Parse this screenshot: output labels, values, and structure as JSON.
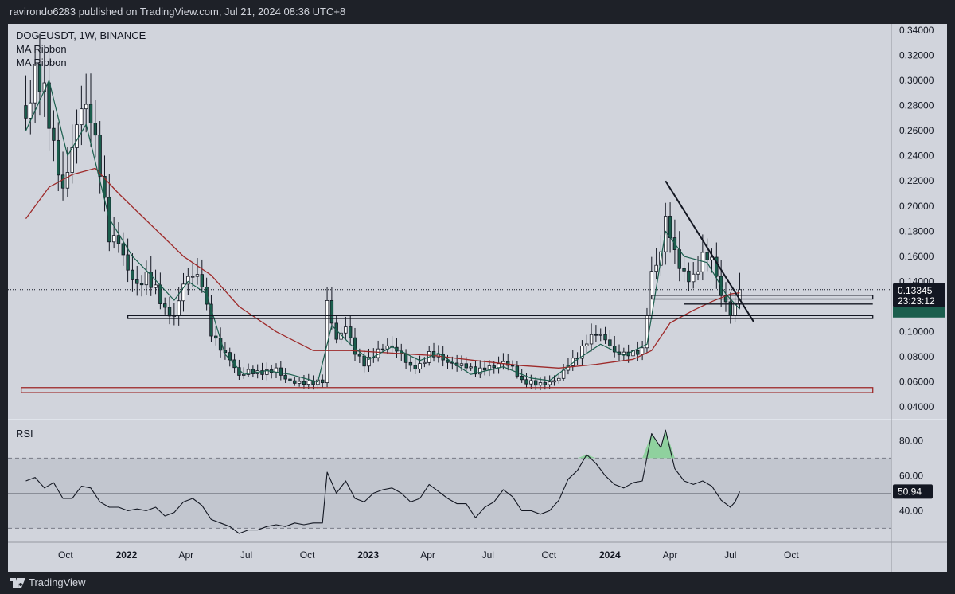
{
  "header": {
    "published": "ravirondo6283 published on TradingView.com, Jul 21, 2024 08:36 UTC+8"
  },
  "legend": {
    "symbol": "DOGEUSDT, 1W, BINANCE",
    "indicator_1": "MA Ribbon",
    "indicator_2": "MA Ribbon"
  },
  "footer": {
    "brand": "TradingView"
  },
  "colors": {
    "up": "#ffffff",
    "down": "#1b5e4d",
    "ma_fast": "#1b5e4d",
    "ma_slow": "#9e2a2a",
    "background": "#d1d4dc",
    "frame": "#1e2128"
  },
  "chart_data": [
    {
      "type": "candlestick",
      "symbol": "DOGEUSDT",
      "interval": "1W",
      "exchange": "BINANCE",
      "ylim": [
        0.03,
        0.345
      ],
      "y_ticks": [
        "0.34000",
        "0.32000",
        "0.30000",
        "0.28000",
        "0.26000",
        "0.24000",
        "0.22000",
        "0.20000",
        "0.18000",
        "0.16000",
        "0.14000",
        "0.12000",
        "0.10000",
        "0.08000",
        "0.06000",
        "0.04000"
      ],
      "x_ticks": [
        {
          "label": "Oct",
          "date": "2021-10-01",
          "bold": false
        },
        {
          "label": "2022",
          "date": "2022-01-01",
          "bold": true
        },
        {
          "label": "Apr",
          "date": "2022-04-01",
          "bold": false
        },
        {
          "label": "Jul",
          "date": "2022-07-01",
          "bold": false
        },
        {
          "label": "Oct",
          "date": "2022-10-01",
          "bold": false
        },
        {
          "label": "2023",
          "date": "2023-01-01",
          "bold": true
        },
        {
          "label": "Apr",
          "date": "2023-04-01",
          "bold": false
        },
        {
          "label": "Jul",
          "date": "2023-07-01",
          "bold": false
        },
        {
          "label": "Oct",
          "date": "2023-10-01",
          "bold": false
        },
        {
          "label": "2024",
          "date": "2024-01-01",
          "bold": true
        },
        {
          "label": "Apr",
          "date": "2024-04-01",
          "bold": false
        },
        {
          "label": "Jul",
          "date": "2024-07-01",
          "bold": false
        },
        {
          "label": "Oct",
          "date": "2024-10-01",
          "bold": false
        }
      ],
      "close_path": [
        [
          "2021-08-02",
          0.28
        ],
        [
          "2021-08-16",
          0.32
        ],
        [
          "2021-08-30",
          0.3
        ],
        [
          "2021-09-13",
          0.25
        ],
        [
          "2021-09-27",
          0.21
        ],
        [
          "2021-10-11",
          0.24
        ],
        [
          "2021-10-25",
          0.27
        ],
        [
          "2021-11-08",
          0.26
        ],
        [
          "2021-11-22",
          0.22
        ],
        [
          "2021-12-06",
          0.17
        ],
        [
          "2021-12-20",
          0.17
        ],
        [
          "2022-01-03",
          0.15
        ],
        [
          "2022-01-17",
          0.14
        ],
        [
          "2022-01-31",
          0.15
        ],
        [
          "2022-02-14",
          0.14
        ],
        [
          "2022-02-28",
          0.122
        ],
        [
          "2022-03-14",
          0.115
        ],
        [
          "2022-03-28",
          0.14
        ],
        [
          "2022-04-11",
          0.145
        ],
        [
          "2022-04-25",
          0.135
        ],
        [
          "2022-05-09",
          0.095
        ],
        [
          "2022-05-23",
          0.083
        ],
        [
          "2022-06-06",
          0.075
        ],
        [
          "2022-06-20",
          0.063
        ],
        [
          "2022-07-04",
          0.068
        ],
        [
          "2022-07-18",
          0.068
        ],
        [
          "2022-08-01",
          0.07
        ],
        [
          "2022-08-15",
          0.073
        ],
        [
          "2022-08-29",
          0.065
        ],
        [
          "2022-09-12",
          0.062
        ],
        [
          "2022-09-26",
          0.061
        ],
        [
          "2022-10-10",
          0.06
        ],
        [
          "2022-10-24",
          0.06
        ],
        [
          "2022-10-31",
          0.12
        ],
        [
          "2022-11-14",
          0.09
        ],
        [
          "2022-11-28",
          0.1
        ],
        [
          "2022-12-12",
          0.08
        ],
        [
          "2022-12-26",
          0.072
        ],
        [
          "2023-01-09",
          0.08
        ],
        [
          "2023-01-23",
          0.088
        ],
        [
          "2023-02-06",
          0.09
        ],
        [
          "2023-02-20",
          0.085
        ],
        [
          "2023-03-06",
          0.075
        ],
        [
          "2023-03-20",
          0.076
        ],
        [
          "2023-04-03",
          0.085
        ],
        [
          "2023-04-17",
          0.082
        ],
        [
          "2023-05-01",
          0.075
        ],
        [
          "2023-05-15",
          0.072
        ],
        [
          "2023-05-29",
          0.07
        ],
        [
          "2023-06-12",
          0.065
        ],
        [
          "2023-06-26",
          0.068
        ],
        [
          "2023-07-10",
          0.07
        ],
        [
          "2023-07-24",
          0.075
        ],
        [
          "2023-08-07",
          0.072
        ],
        [
          "2023-08-21",
          0.062
        ],
        [
          "2023-09-04",
          0.062
        ],
        [
          "2023-09-18",
          0.061
        ],
        [
          "2023-10-02",
          0.062
        ],
        [
          "2023-10-16",
          0.065
        ],
        [
          "2023-10-30",
          0.075
        ],
        [
          "2023-11-13",
          0.08
        ],
        [
          "2023-11-27",
          0.09
        ],
        [
          "2023-12-11",
          0.095
        ],
        [
          "2023-12-25",
          0.09
        ],
        [
          "2024-01-08",
          0.08
        ],
        [
          "2024-01-22",
          0.08
        ],
        [
          "2024-02-05",
          0.082
        ],
        [
          "2024-02-19",
          0.086
        ],
        [
          "2024-03-04",
          0.15
        ],
        [
          "2024-03-18",
          0.17
        ],
        [
          "2024-03-25",
          0.2
        ],
        [
          "2024-04-08",
          0.17
        ],
        [
          "2024-04-22",
          0.15
        ],
        [
          "2024-05-06",
          0.145
        ],
        [
          "2024-05-20",
          0.16
        ],
        [
          "2024-06-03",
          0.155
        ],
        [
          "2024-06-17",
          0.125
        ],
        [
          "2024-07-01",
          0.11
        ],
        [
          "2024-07-08",
          0.115
        ],
        [
          "2024-07-15",
          0.13345
        ]
      ],
      "ma_fast": [
        [
          "2021-08-02",
          0.26
        ],
        [
          "2021-09-06",
          0.3
        ],
        [
          "2021-10-04",
          0.24
        ],
        [
          "2021-11-01",
          0.265
        ],
        [
          "2021-12-06",
          0.19
        ],
        [
          "2022-01-10",
          0.16
        ],
        [
          "2022-02-07",
          0.145
        ],
        [
          "2022-03-14",
          0.125
        ],
        [
          "2022-04-04",
          0.14
        ],
        [
          "2022-05-02",
          0.13
        ],
        [
          "2022-05-30",
          0.082
        ],
        [
          "2022-06-27",
          0.066
        ],
        [
          "2022-08-01",
          0.069
        ],
        [
          "2022-09-05",
          0.066
        ],
        [
          "2022-10-17",
          0.06
        ],
        [
          "2022-11-07",
          0.105
        ],
        [
          "2022-12-05",
          0.09
        ],
        [
          "2023-01-02",
          0.078
        ],
        [
          "2023-02-06",
          0.088
        ],
        [
          "2023-03-20",
          0.077
        ],
        [
          "2023-04-17",
          0.083
        ],
        [
          "2023-06-05",
          0.066
        ],
        [
          "2023-07-24",
          0.072
        ],
        [
          "2023-09-04",
          0.063
        ],
        [
          "2023-10-02",
          0.061
        ],
        [
          "2023-11-13",
          0.078
        ],
        [
          "2023-12-18",
          0.09
        ],
        [
          "2024-01-22",
          0.081
        ],
        [
          "2024-02-26",
          0.09
        ],
        [
          "2024-03-25",
          0.18
        ],
        [
          "2024-04-22",
          0.16
        ],
        [
          "2024-05-27",
          0.155
        ],
        [
          "2024-06-24",
          0.13
        ],
        [
          "2024-07-15",
          0.118
        ]
      ],
      "ma_slow": [
        [
          "2021-08-02",
          0.19
        ],
        [
          "2021-09-06",
          0.215
        ],
        [
          "2021-10-11",
          0.225
        ],
        [
          "2021-11-15",
          0.23
        ],
        [
          "2021-12-20",
          0.21
        ],
        [
          "2022-02-07",
          0.185
        ],
        [
          "2022-03-28",
          0.16
        ],
        [
          "2022-05-09",
          0.145
        ],
        [
          "2022-06-20",
          0.12
        ],
        [
          "2022-08-15",
          0.1
        ],
        [
          "2022-10-10",
          0.085
        ],
        [
          "2022-12-05",
          0.085
        ],
        [
          "2023-02-06",
          0.083
        ],
        [
          "2023-04-10",
          0.081
        ],
        [
          "2023-06-12",
          0.077
        ],
        [
          "2023-08-21",
          0.073
        ],
        [
          "2023-10-16",
          0.071
        ],
        [
          "2023-12-11",
          0.074
        ],
        [
          "2024-02-05",
          0.078
        ],
        [
          "2024-03-04",
          0.085
        ],
        [
          "2024-04-01",
          0.107
        ],
        [
          "2024-05-06",
          0.117
        ],
        [
          "2024-06-03",
          0.124
        ],
        [
          "2024-07-01",
          0.13
        ],
        [
          "2024-07-15",
          0.131
        ]
      ],
      "horizontal_levels": [
        {
          "y_top": 0.0555,
          "y_bottom": 0.0515,
          "from": "2021-07-26",
          "to": "2025-02-01",
          "color": "#9e2a2a"
        },
        {
          "y_top": 0.1128,
          "y_bottom": 0.1105,
          "from": "2022-01-03",
          "to": "2025-02-01",
          "color": "#131722"
        },
        {
          "y_top": 0.129,
          "y_bottom": 0.126,
          "from": "2024-03-04",
          "to": "2025-02-01",
          "color": "#131722"
        },
        {
          "y_top": 0.122,
          "y_bottom": 0.122,
          "from": "2024-04-22",
          "to": "2025-02-01",
          "color": "#131722"
        }
      ],
      "trendline": {
        "from": [
          "2024-03-25",
          0.22
        ],
        "to": [
          "2024-08-05",
          0.108
        ]
      },
      "last_price": {
        "value": "0.13345",
        "countdown": "23:23:12"
      }
    },
    {
      "type": "line",
      "title": "RSI",
      "ylim": [
        22,
        92
      ],
      "y_ticks": [
        "80.00",
        "60.00",
        "40.00"
      ],
      "band": [
        30,
        70
      ],
      "last_value": "50.94",
      "points": [
        [
          "2021-08-02",
          57
        ],
        [
          "2021-08-16",
          59
        ],
        [
          "2021-08-30",
          53
        ],
        [
          "2021-09-13",
          56
        ],
        [
          "2021-09-27",
          47
        ],
        [
          "2021-10-11",
          47
        ],
        [
          "2021-10-25",
          54
        ],
        [
          "2021-11-08",
          53
        ],
        [
          "2021-11-22",
          45
        ],
        [
          "2021-12-06",
          42
        ],
        [
          "2021-12-20",
          42
        ],
        [
          "2022-01-03",
          40
        ],
        [
          "2022-01-17",
          41
        ],
        [
          "2022-01-31",
          40
        ],
        [
          "2022-02-14",
          42
        ],
        [
          "2022-02-28",
          37
        ],
        [
          "2022-03-14",
          39
        ],
        [
          "2022-03-28",
          45
        ],
        [
          "2022-04-11",
          47
        ],
        [
          "2022-04-25",
          43
        ],
        [
          "2022-05-09",
          35
        ],
        [
          "2022-05-23",
          33
        ],
        [
          "2022-06-06",
          31
        ],
        [
          "2022-06-20",
          27
        ],
        [
          "2022-07-04",
          29
        ],
        [
          "2022-07-18",
          29
        ],
        [
          "2022-08-01",
          31
        ],
        [
          "2022-08-15",
          32
        ],
        [
          "2022-08-29",
          31
        ],
        [
          "2022-09-12",
          33
        ],
        [
          "2022-09-26",
          32
        ],
        [
          "2022-10-10",
          33
        ],
        [
          "2022-10-24",
          33
        ],
        [
          "2022-10-31",
          62
        ],
        [
          "2022-11-14",
          50
        ],
        [
          "2022-11-28",
          57
        ],
        [
          "2022-12-12",
          47
        ],
        [
          "2022-12-26",
          45
        ],
        [
          "2023-01-09",
          50
        ],
        [
          "2023-01-23",
          52
        ],
        [
          "2023-02-06",
          53
        ],
        [
          "2023-02-20",
          50
        ],
        [
          "2023-03-06",
          45
        ],
        [
          "2023-03-20",
          47
        ],
        [
          "2023-04-03",
          55
        ],
        [
          "2023-04-17",
          51
        ],
        [
          "2023-05-01",
          47
        ],
        [
          "2023-05-15",
          44
        ],
        [
          "2023-05-29",
          44
        ],
        [
          "2023-06-12",
          36
        ],
        [
          "2023-06-26",
          42
        ],
        [
          "2023-07-10",
          45
        ],
        [
          "2023-07-24",
          52
        ],
        [
          "2023-08-07",
          48
        ],
        [
          "2023-08-21",
          40
        ],
        [
          "2023-09-04",
          40
        ],
        [
          "2023-09-18",
          38
        ],
        [
          "2023-10-02",
          40
        ],
        [
          "2023-10-16",
          46
        ],
        [
          "2023-10-30",
          58
        ],
        [
          "2023-11-13",
          63
        ],
        [
          "2023-11-27",
          72
        ],
        [
          "2023-12-11",
          67
        ],
        [
          "2023-12-25",
          60
        ],
        [
          "2024-01-08",
          55
        ],
        [
          "2024-01-22",
          53
        ],
        [
          "2024-02-05",
          56
        ],
        [
          "2024-02-19",
          57
        ],
        [
          "2024-03-04",
          84
        ],
        [
          "2024-03-18",
          76
        ],
        [
          "2024-03-25",
          86
        ],
        [
          "2024-04-08",
          64
        ],
        [
          "2024-04-22",
          57
        ],
        [
          "2024-05-06",
          55
        ],
        [
          "2024-05-20",
          57
        ],
        [
          "2024-06-03",
          54
        ],
        [
          "2024-06-17",
          46
        ],
        [
          "2024-07-01",
          42
        ],
        [
          "2024-07-08",
          45
        ],
        [
          "2024-07-15",
          50.94
        ]
      ]
    }
  ]
}
